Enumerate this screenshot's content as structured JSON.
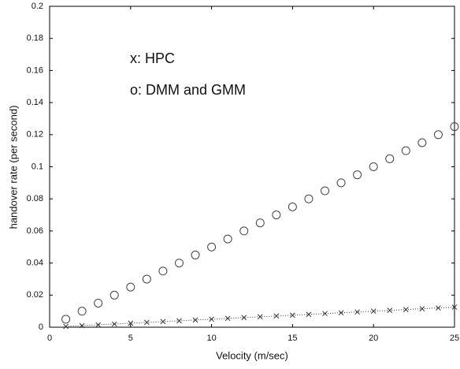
{
  "chart_data": {
    "type": "line",
    "xlabel": "Velocity (m/sec)",
    "ylabel": "handover rate (per second)",
    "annotations": [
      "x: HPC",
      "o: DMM and GMM"
    ],
    "x": [
      1,
      2,
      3,
      4,
      5,
      6,
      7,
      8,
      9,
      10,
      11,
      12,
      13,
      14,
      15,
      16,
      17,
      18,
      19,
      20,
      21,
      22,
      23,
      24,
      25
    ],
    "series": [
      {
        "marker": "o",
        "linestyle": "none",
        "color": "#444444",
        "values": [
          0.005,
          0.01,
          0.015,
          0.02,
          0.025,
          0.03,
          0.035,
          0.04,
          0.045,
          0.05,
          0.055,
          0.06,
          0.065,
          0.07,
          0.075,
          0.08,
          0.085,
          0.09,
          0.095,
          0.1,
          0.105,
          0.11,
          0.115,
          0.12,
          0.125
        ]
      },
      {
        "marker": "x",
        "linestyle": "dotted",
        "color": "#333333",
        "values": [
          0.0005,
          0.001,
          0.0015,
          0.002,
          0.0025,
          0.003,
          0.0035,
          0.004,
          0.0045,
          0.005,
          0.0055,
          0.006,
          0.0065,
          0.007,
          0.0075,
          0.008,
          0.0085,
          0.009,
          0.0095,
          0.01,
          0.0105,
          0.011,
          0.0115,
          0.012,
          0.0125
        ]
      }
    ],
    "xlim": [
      0,
      25
    ],
    "xticks": [
      0,
      5,
      10,
      15,
      20,
      25
    ],
    "ylim": [
      0,
      0.2
    ],
    "yticks": [
      0,
      0.02,
      0.04,
      0.06,
      0.08,
      0.1,
      0.12,
      0.14,
      0.16,
      0.18,
      0.2
    ],
    "grid": false
  }
}
